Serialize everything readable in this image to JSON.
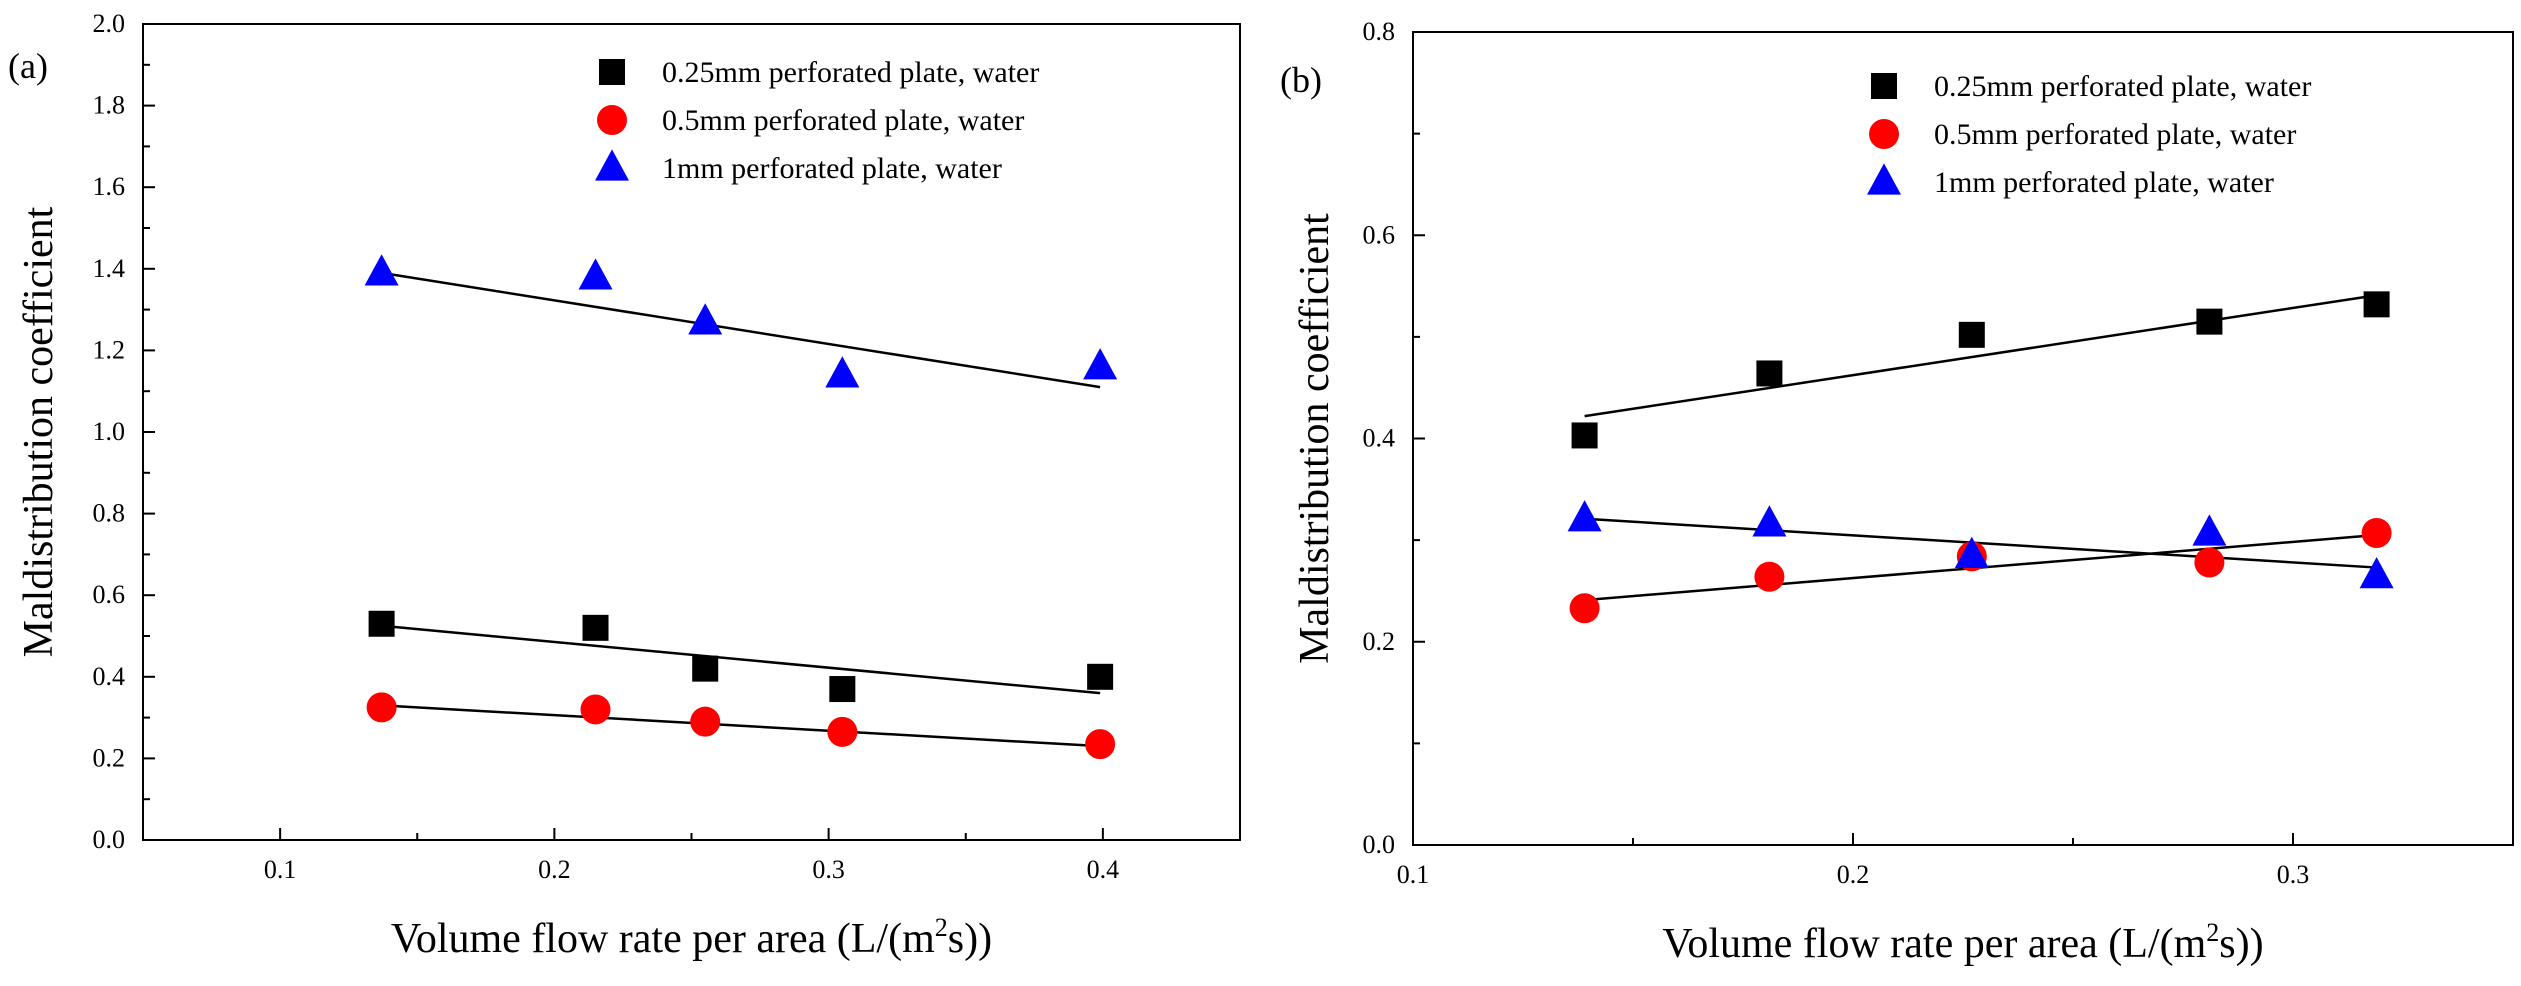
{
  "chart_data": [
    {
      "type": "scatter",
      "panel_label": "(a)",
      "xlabel": "Volume flow rate per area (L/(m2s))",
      "xlabel_parts": {
        "pre": "Volume flow rate per area (L/(m",
        "sup": "2",
        "post": "s))"
      },
      "ylabel": "Maldistribution coefficient",
      "xlim": [
        0.05,
        0.45
      ],
      "ylim": [
        0.0,
        2.0
      ],
      "x_ticks": [
        0.1,
        0.2,
        0.3,
        0.4
      ],
      "x_tick_labels": [
        "0.1",
        "0.2",
        "0.3",
        "0.4"
      ],
      "y_ticks": [
        0.0,
        0.2,
        0.4,
        0.6,
        0.8,
        1.0,
        1.2,
        1.4,
        1.6,
        1.8,
        2.0
      ],
      "y_tick_labels": [
        "0.0",
        "0.2",
        "0.4",
        "0.6",
        "0.8",
        "1.0",
        "1.2",
        "1.4",
        "1.6",
        "1.8",
        "2.0"
      ],
      "grid": false,
      "legend_position": "top-right",
      "series": [
        {
          "name": "0.25mm perforated plate, water",
          "marker": "square",
          "color": "#000000",
          "x": [
            0.137,
            0.215,
            0.255,
            0.305,
            0.399
          ],
          "y": [
            0.53,
            0.52,
            0.42,
            0.37,
            0.4
          ],
          "fit": [
            [
              0.137,
              0.525
            ],
            [
              0.399,
              0.36
            ]
          ]
        },
        {
          "name": "0.5mm perforated plate, water",
          "marker": "circle",
          "color": "#ff0000",
          "x": [
            0.137,
            0.215,
            0.255,
            0.305,
            0.399
          ],
          "y": [
            0.325,
            0.32,
            0.29,
            0.265,
            0.235
          ],
          "fit": [
            [
              0.137,
              0.33
            ],
            [
              0.399,
              0.23
            ]
          ]
        },
        {
          "name": "1mm perforated plate, water",
          "marker": "triangle",
          "color": "#0000ff",
          "x": [
            0.137,
            0.215,
            0.255,
            0.305,
            0.399
          ],
          "y": [
            1.39,
            1.38,
            1.27,
            1.14,
            1.16
          ],
          "fit": [
            [
              0.137,
              1.39
            ],
            [
              0.399,
              1.11
            ]
          ]
        }
      ]
    },
    {
      "type": "scatter",
      "panel_label": "(b)",
      "xlabel": "Volume flow rate per area (L/(m2s))",
      "xlabel_parts": {
        "pre": "Volume flow rate per area (L/(m",
        "sup": "2",
        "post": "s))"
      },
      "ylabel": "Maldistribution coefficient",
      "xlim": [
        0.1,
        0.35
      ],
      "ylim": [
        0.0,
        0.8
      ],
      "x_ticks": [
        0.1,
        0.2,
        0.3
      ],
      "x_tick_labels": [
        "0.1",
        "0.2",
        "0.3"
      ],
      "y_ticks": [
        0.0,
        0.2,
        0.4,
        0.6,
        0.8
      ],
      "y_tick_labels": [
        "0.0",
        "0.2",
        "0.4",
        "0.6",
        "0.8"
      ],
      "grid": false,
      "legend_position": "top-right",
      "series": [
        {
          "name": "0.25mm perforated plate, water",
          "marker": "square",
          "color": "#000000",
          "x": [
            0.139,
            0.181,
            0.227,
            0.281,
            0.319
          ],
          "y": [
            0.403,
            0.464,
            0.502,
            0.515,
            0.532
          ],
          "fit": [
            [
              0.139,
              0.422
            ],
            [
              0.319,
              0.541
            ]
          ]
        },
        {
          "name": "0.5mm perforated plate, water",
          "marker": "circle",
          "color": "#ff0000",
          "x": [
            0.139,
            0.181,
            0.227,
            0.281,
            0.319
          ],
          "y": [
            0.233,
            0.264,
            0.284,
            0.278,
            0.307
          ],
          "fit": [
            [
              0.139,
              0.241
            ],
            [
              0.319,
              0.305
            ]
          ]
        },
        {
          "name": "1mm perforated plate, water",
          "marker": "triangle",
          "color": "#0000ff",
          "x": [
            0.139,
            0.181,
            0.227,
            0.281,
            0.319
          ],
          "y": [
            0.321,
            0.316,
            0.285,
            0.307,
            0.265
          ],
          "fit": [
            [
              0.139,
              0.321
            ],
            [
              0.319,
              0.273
            ]
          ]
        }
      ]
    }
  ]
}
